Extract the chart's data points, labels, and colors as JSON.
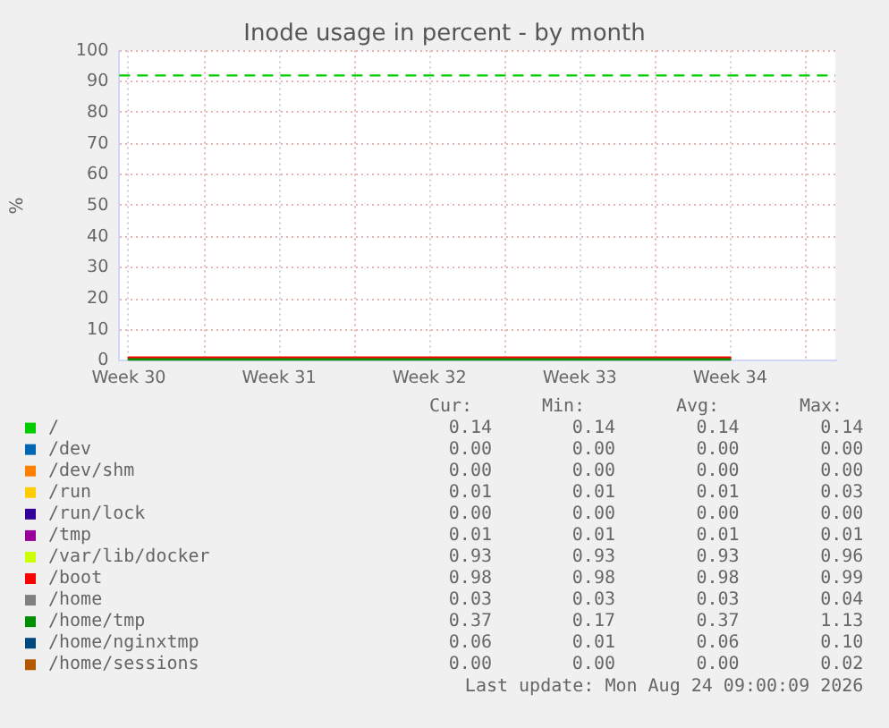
{
  "chart_data": {
    "type": "line",
    "title": "Inode usage in percent - by month",
    "ylabel": "%",
    "categories": [
      "Week 30",
      "Week 31",
      "Week 32",
      "Week 33",
      "Week 34"
    ],
    "ylim": [
      0,
      100
    ],
    "yticks": [
      0,
      10,
      20,
      30,
      40,
      50,
      60,
      70,
      80,
      90,
      100
    ],
    "grid": true,
    "legend": "bottom",
    "series": [
      {
        "name": "/",
        "color": "#00cc00",
        "values": [
          null,
          null,
          null,
          null,
          null
        ]
      },
      {
        "name": "/dev",
        "color": "#0066b3",
        "values": [
          null,
          null,
          null,
          null,
          null
        ]
      },
      {
        "name": "/dev/shm",
        "color": "#ff8000",
        "values": [
          null,
          null,
          null,
          null,
          null
        ]
      },
      {
        "name": "/run",
        "color": "#ffcc00",
        "values": [
          null,
          null,
          null,
          null,
          null
        ]
      },
      {
        "name": "/run/lock",
        "color": "#330099",
        "values": [
          null,
          null,
          null,
          null,
          null
        ]
      },
      {
        "name": "/tmp",
        "color": "#990099",
        "values": [
          null,
          null,
          null,
          null,
          null
        ]
      },
      {
        "name": "/var/lib/docker",
        "color": "#ccff00",
        "values": [
          null,
          null,
          null,
          null,
          null
        ]
      },
      {
        "name": "/boot",
        "color": "#ff0000",
        "values": [
          0.98,
          0.98,
          0.98,
          0.98,
          0.98
        ]
      },
      {
        "name": "/home",
        "color": "#808080",
        "values": [
          null,
          null,
          null,
          null,
          null
        ]
      },
      {
        "name": "/home/tmp",
        "color": "#008f00",
        "values": [
          0.37,
          0.37,
          0.37,
          0.37,
          0.37
        ]
      },
      {
        "name": "/home/nginxtmp",
        "color": "#00487d",
        "values": [
          null,
          null,
          null,
          null,
          null
        ]
      },
      {
        "name": "/home/sessions",
        "color": "#b35a00",
        "values": [
          null,
          null,
          null,
          null,
          null
        ]
      }
    ],
    "ref_lines": [
      {
        "axis": "y",
        "value": 92,
        "color": "#00cc00",
        "line_style": "dashed"
      }
    ],
    "annotations": [
      "Cur:",
      "Min:",
      "Avg:",
      "Max:",
      "0.14",
      "0.14",
      "0.14",
      "0.14",
      "0.00",
      "0.00",
      "0.00",
      "0.00",
      "0.00",
      "0.00",
      "0.00",
      "0.00",
      "0.01",
      "0.01",
      "0.01",
      "0.03",
      "0.00",
      "0.00",
      "0.00",
      "0.00",
      "0.01",
      "0.01",
      "0.01",
      "0.01",
      "0.93",
      "0.93",
      "0.93",
      "0.96",
      "0.98",
      "0.98",
      "0.98",
      "0.99",
      "0.03",
      "0.03",
      "0.03",
      "0.04",
      "0.37",
      "0.17",
      "0.37",
      "1.13",
      "0.06",
      "0.01",
      "0.06",
      "0.10",
      "0.00",
      "0.00",
      "0.00",
      "0.02",
      "Last update: Mon Aug 24 09:00:09 2026"
    ]
  }
}
